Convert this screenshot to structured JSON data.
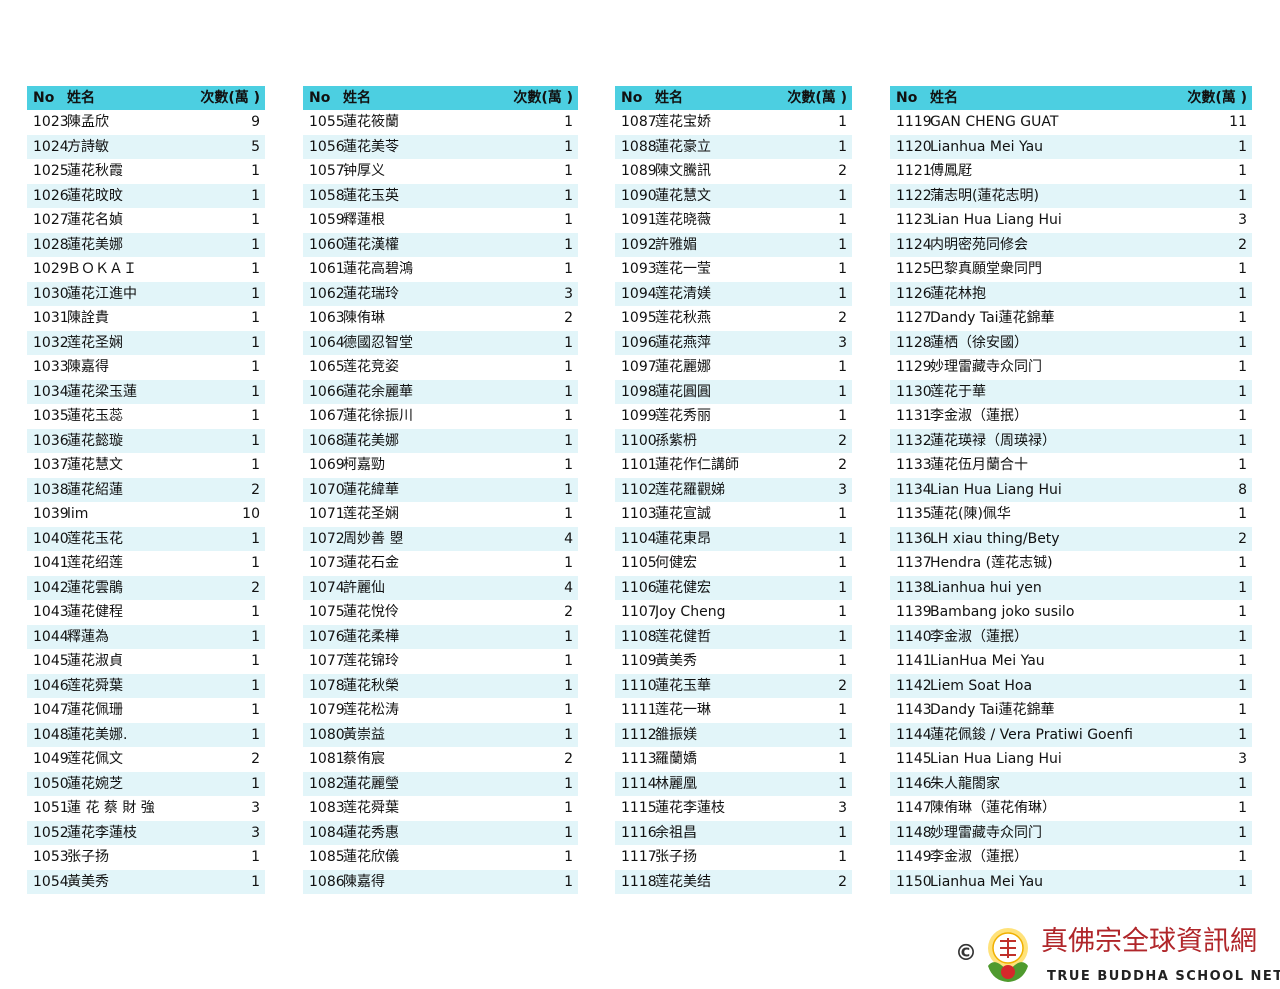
{
  "headers": {
    "no": "No",
    "name": "姓名",
    "count": "次數(萬 )"
  },
  "colors": {
    "header": "#4ccfe1",
    "alt_row": "#e2f5f9",
    "logo_red": "#b0262a"
  },
  "tables": [
    [
      [
        "1023",
        "陳孟欣",
        "9"
      ],
      [
        "1024",
        "方詩敏",
        "5"
      ],
      [
        "1025",
        "蓮花秋霞",
        "1"
      ],
      [
        "1026",
        "蓮花旼旼",
        "1"
      ],
      [
        "1027",
        "蓮花名媜",
        "1"
      ],
      [
        "1028",
        "蓮花美娜",
        "1"
      ],
      [
        "1029",
        "ＢＯＫＡＩ",
        "1"
      ],
      [
        "1030",
        "蓮花江進中",
        "1"
      ],
      [
        "1031",
        "陳詮貴",
        "1"
      ],
      [
        "1032",
        "莲花圣娴",
        "1"
      ],
      [
        "1033",
        "陳嘉得",
        "1"
      ],
      [
        "1034",
        "蓮花梁玉蓮",
        "1"
      ],
      [
        "1035",
        "蓮花玉蕊",
        "1"
      ],
      [
        "1036",
        "蓮花懿璇",
        "1"
      ],
      [
        "1037",
        "蓮花慧文",
        "1"
      ],
      [
        "1038",
        "蓮花紹蓮",
        "2"
      ],
      [
        "1039",
        "lim",
        "10"
      ],
      [
        "1040",
        "莲花玉花",
        "1"
      ],
      [
        "1041",
        "莲花绍莲",
        "1"
      ],
      [
        "1042",
        "蓮花雲鵑",
        "2"
      ],
      [
        "1043",
        "蓮花健程",
        "1"
      ],
      [
        "1044",
        "釋蓮為",
        "1"
      ],
      [
        "1045",
        "蓮花淑貞",
        "1"
      ],
      [
        "1046",
        "莲花舜葉",
        "1"
      ],
      [
        "1047",
        "蓮花佩珊",
        "1"
      ],
      [
        "1048",
        "蓮花美娜.",
        "1"
      ],
      [
        "1049",
        "莲花佩文",
        "2"
      ],
      [
        "1050",
        "蓮花婉芝",
        "1"
      ],
      [
        "1051",
        "蓮 花 蔡 財 強",
        "3"
      ],
      [
        "1052",
        "蓮花李蓮枝",
        "3"
      ],
      [
        "1053",
        "张子扬",
        "1"
      ],
      [
        "1054",
        "黃美秀",
        "1"
      ]
    ],
    [
      [
        "1055",
        "蓮花筱蘭",
        "1"
      ],
      [
        "1056",
        "蓮花美苓",
        "1"
      ],
      [
        "1057",
        "钟厚义",
        "1"
      ],
      [
        "1058",
        "蓮花玉英",
        "1"
      ],
      [
        "1059",
        "釋蓮根",
        "1"
      ],
      [
        "1060",
        "蓮花漢權",
        "1"
      ],
      [
        "1061",
        "蓮花高碧鴻",
        "1"
      ],
      [
        "1062",
        "蓮花瑞玲",
        "3"
      ],
      [
        "1063",
        "陳侑琳",
        "2"
      ],
      [
        "1064",
        "德國忍智堂",
        "1"
      ],
      [
        "1065",
        "莲花竞姿",
        "1"
      ],
      [
        "1066",
        "蓮花余麗華",
        "1"
      ],
      [
        "1067",
        "蓮花徐振川",
        "1"
      ],
      [
        "1068",
        "蓮花美娜",
        "1"
      ],
      [
        "1069",
        "柯嘉勁",
        "1"
      ],
      [
        "1070",
        "蓮花緯華",
        "1"
      ],
      [
        "1071",
        "莲花圣娴",
        "1"
      ],
      [
        "1072",
        "周妙善 曌",
        "4"
      ],
      [
        "1073",
        "蓮花石金",
        "1"
      ],
      [
        "1074",
        "許麗仙",
        "4"
      ],
      [
        "1075",
        "蓮花悅伶",
        "2"
      ],
      [
        "1076",
        "蓮花柔樺",
        "1"
      ],
      [
        "1077",
        "莲花锦玲",
        "1"
      ],
      [
        "1078",
        "蓮花秋榮",
        "1"
      ],
      [
        "1079",
        "莲花松涛",
        "1"
      ],
      [
        "1080",
        "黃崇益",
        "1"
      ],
      [
        "1081",
        "蔡侑宸",
        "2"
      ],
      [
        "1082",
        "蓮花麗瑩",
        "1"
      ],
      [
        "1083",
        "莲花舜葉",
        "1"
      ],
      [
        "1084",
        "蓮花秀惠",
        "1"
      ],
      [
        "1085",
        "蓮花欣儀",
        "1"
      ],
      [
        "1086",
        "陳嘉得",
        "1"
      ]
    ],
    [
      [
        "1087",
        "莲花宝娇",
        "1"
      ],
      [
        "1088",
        "蓮花豪立",
        "1"
      ],
      [
        "1089",
        "陳文騰訊",
        "2"
      ],
      [
        "1090",
        "蓮花慧文",
        "1"
      ],
      [
        "1091",
        "莲花晓薇",
        "1"
      ],
      [
        "1092",
        "許雅媚",
        "1"
      ],
      [
        "1093",
        "莲花一莹",
        "1"
      ],
      [
        "1094",
        "莲花清媄",
        "1"
      ],
      [
        "1095",
        "莲花秋燕",
        "2"
      ],
      [
        "1096",
        "蓮花燕萍",
        "3"
      ],
      [
        "1097",
        "蓮花麗娜",
        "1"
      ],
      [
        "1098",
        "蓮花圓圓",
        "1"
      ],
      [
        "1099",
        "莲花秀丽",
        "1"
      ],
      [
        "1100",
        "孫紫枬",
        "2"
      ],
      [
        "1101",
        "蓮花作仁講師",
        "2"
      ],
      [
        "1102",
        "莲花羅觀娣",
        "3"
      ],
      [
        "1103",
        "蓮花宣誠",
        "1"
      ],
      [
        "1104",
        "蓮花東昂",
        "1"
      ],
      [
        "1105",
        "何健宏",
        "1"
      ],
      [
        "1106",
        "蓮花健宏",
        "1"
      ],
      [
        "1107",
        "Joy Cheng",
        "1"
      ],
      [
        "1108",
        "莲花健哲",
        "1"
      ],
      [
        "1109",
        "黃美秀",
        "1"
      ],
      [
        "1110",
        "蓮花玉華",
        "2"
      ],
      [
        "1111",
        "莲花一琳",
        "1"
      ],
      [
        "1112",
        "雒振媄",
        "1"
      ],
      [
        "1113",
        "羅蘭嬌",
        "1"
      ],
      [
        "1114",
        "林麗凰",
        "1"
      ],
      [
        "1115",
        "蓮花李蓮枝",
        "3"
      ],
      [
        "1116",
        "余祖昌",
        "1"
      ],
      [
        "1117",
        "张子扬",
        "1"
      ],
      [
        "1118",
        "莲花美结",
        "2"
      ]
    ],
    [
      [
        "1119",
        "GAN CHENG GUAT",
        "11"
      ],
      [
        "1120",
        "Lianhua Mei Yau",
        "1"
      ],
      [
        "1121",
        "傅鳳屘",
        "1"
      ],
      [
        "1122",
        "蒲志明(蓮花志明)",
        "1"
      ],
      [
        "1123",
        "Lian Hua Liang Hui",
        "3"
      ],
      [
        "1124",
        "内明密苑同修会",
        "2"
      ],
      [
        "1125",
        "巴黎真願堂衆同門",
        "1"
      ],
      [
        "1126",
        "蓮花林抱",
        "1"
      ],
      [
        "1127",
        "Dandy Tai蓮花錦華",
        "1"
      ],
      [
        "1128",
        "蓮栖（徐安國）",
        "1"
      ],
      [
        "1129",
        "妙理雷藏寺众同门",
        "1"
      ],
      [
        "1130",
        "莲花于華",
        "1"
      ],
      [
        "1131",
        "李金淑（蓮抿）",
        "1"
      ],
      [
        "1132",
        "蓮花瑛禄（周瑛禄）",
        "1"
      ],
      [
        "1133",
        "蓮花伍月蘭合十",
        "1"
      ],
      [
        "1134",
        "Lian Hua Liang Hui",
        "8"
      ],
      [
        "1135",
        "蓮花(陳)佩华",
        "1"
      ],
      [
        "1136",
        "LH xiau thing/Bety",
        "2"
      ],
      [
        "1137",
        "Hendra (莲花志铖)",
        "1"
      ],
      [
        "1138",
        "Lianhua hui yen",
        "1"
      ],
      [
        "1139",
        "Bambang joko susilo",
        "1"
      ],
      [
        "1140",
        "李金淑（蓮抿）",
        "1"
      ],
      [
        "1141",
        "LianHua Mei Yau",
        "1"
      ],
      [
        "1142",
        "Liem Soat Hoa",
        "1"
      ],
      [
        "1143",
        "Dandy Tai蓮花錦華",
        "1"
      ],
      [
        "1144",
        "蓮花佩鋑 / Vera Pratiwi Goenfi",
        "1"
      ],
      [
        "1145",
        "Lian Hua Liang Hui",
        "3"
      ],
      [
        "1146",
        "朱人龍閤家",
        "1"
      ],
      [
        "1147",
        "陳侑琳（蓮花侑琳）",
        "1"
      ],
      [
        "1148",
        "妙理雷藏寺众同门",
        "1"
      ],
      [
        "1149",
        "李金淑（蓮抿）",
        "1"
      ],
      [
        "1150",
        "Lianhua Mei Yau",
        "1"
      ]
    ]
  ],
  "logo": {
    "copyright": "©",
    "chinese": "真佛宗全球資訊網",
    "english": "TRUE BUDDHA SCHOOL NET",
    "emblem_text": "真佛宗"
  }
}
